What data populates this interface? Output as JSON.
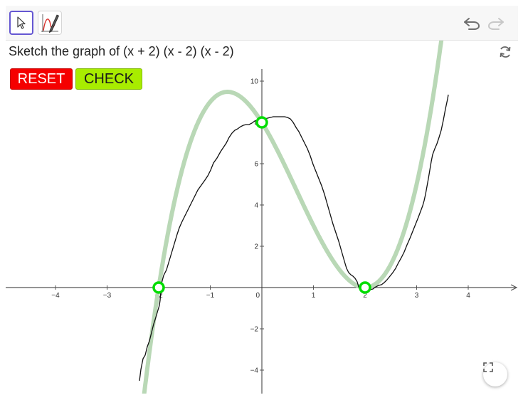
{
  "toolbar": {
    "move_tool": "move-arrow-icon",
    "pen_tool": "pen-graph-icon",
    "undo": "undo-icon",
    "redo": "redo-icon"
  },
  "task": {
    "text": "Sketch the graph of (x + 2) (x - 2) (x - 2)"
  },
  "buttons": {
    "reset_label": "RESET",
    "check_label": "CHECK"
  },
  "graph": {
    "x_ticks": [
      "−4",
      "−3",
      "−2",
      "−1",
      "0",
      "1",
      "2",
      "3",
      "4"
    ],
    "y_ticks": [
      "10",
      "8",
      "6",
      "4",
      "2",
      "−2",
      "−4"
    ],
    "points": [
      {
        "x": -2,
        "y": 0
      },
      {
        "x": 0,
        "y": 8
      },
      {
        "x": 2,
        "y": 0
      }
    ]
  },
  "colors": {
    "reset": "#f50000",
    "check": "#a8ec00",
    "curve": "#b9d8b6",
    "point": "#00dd00",
    "axis": "#555555"
  }
}
